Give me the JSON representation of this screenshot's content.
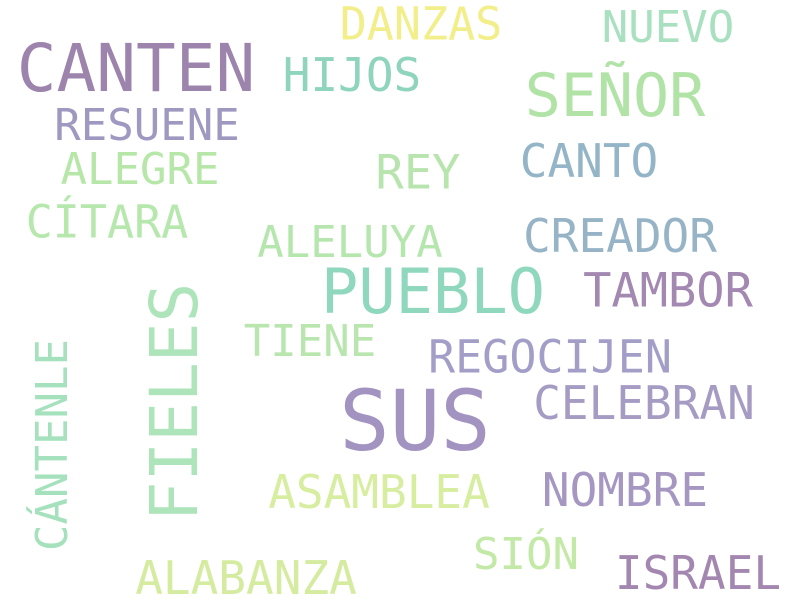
{
  "word_cloud": {
    "background": "#ffffff",
    "words": [
      {
        "id": "canten",
        "text": "CANTEN",
        "color": "#9d84ad",
        "orientation": "horizontal"
      },
      {
        "id": "danzas",
        "text": "DANZAS",
        "color": "#f2ef8b",
        "orientation": "horizontal"
      },
      {
        "id": "nuevo",
        "text": "NUEVO",
        "color": "#a8e0c0",
        "orientation": "horizontal"
      },
      {
        "id": "hijos",
        "text": "HIJOS",
        "color": "#8fd4bd",
        "orientation": "horizontal"
      },
      {
        "id": "senor",
        "text": "SEÑOR",
        "color": "#b1e3a7",
        "orientation": "horizontal"
      },
      {
        "id": "resuene",
        "text": "RESUENE",
        "color": "#9f98c0",
        "orientation": "horizontal"
      },
      {
        "id": "alegre",
        "text": "ALEGRE",
        "color": "#b7e7a8",
        "orientation": "horizontal"
      },
      {
        "id": "rey",
        "text": "REY",
        "color": "#b8e4ad",
        "orientation": "horizontal"
      },
      {
        "id": "canto",
        "text": "CANTO",
        "color": "#93b5c7",
        "orientation": "horizontal"
      },
      {
        "id": "citara",
        "text": "CÍTARA",
        "color": "#b6e8ad",
        "orientation": "horizontal"
      },
      {
        "id": "aleluya",
        "text": "ALELUYA",
        "color": "#b5e6ad",
        "orientation": "horizontal"
      },
      {
        "id": "creador",
        "text": "CREADOR",
        "color": "#97b4c7",
        "orientation": "horizontal"
      },
      {
        "id": "pueblo",
        "text": "PUEBLO",
        "color": "#8fd8be",
        "orientation": "horizontal"
      },
      {
        "id": "tambor",
        "text": "TAMBOR",
        "color": "#a388b1",
        "orientation": "horizontal"
      },
      {
        "id": "fieles",
        "text": "FIELES",
        "color": "#ade4ba",
        "orientation": "vertical"
      },
      {
        "id": "cantenle",
        "text": "CÁNTENLE",
        "color": "#a4e1bc",
        "orientation": "vertical"
      },
      {
        "id": "tiene",
        "text": "TIENE",
        "color": "#b8e6ae",
        "orientation": "horizontal"
      },
      {
        "id": "regocijen",
        "text": "REGOCIJEN",
        "color": "#a39ec7",
        "orientation": "horizontal"
      },
      {
        "id": "sus",
        "text": "SUS",
        "color": "#a393c1",
        "orientation": "horizontal"
      },
      {
        "id": "celebran",
        "text": "CELEBRAN",
        "color": "#a69bc3",
        "orientation": "horizontal"
      },
      {
        "id": "asamblea",
        "text": "ASAMBLEA",
        "color": "#d7eda0",
        "orientation": "horizontal"
      },
      {
        "id": "nombre",
        "text": "NOMBRE",
        "color": "#a697c2",
        "orientation": "horizontal"
      },
      {
        "id": "sion",
        "text": "SIÓN",
        "color": "#c2e9a6",
        "orientation": "horizontal"
      },
      {
        "id": "alabanza",
        "text": "ALABANZA",
        "color": "#d4eba0",
        "orientation": "horizontal"
      },
      {
        "id": "israel",
        "text": "ISRAEL",
        "color": "#a387b0",
        "orientation": "horizontal"
      }
    ]
  }
}
